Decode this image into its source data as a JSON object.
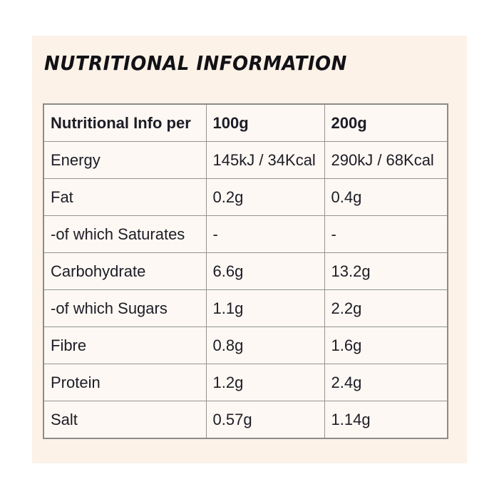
{
  "page": {
    "title": "NUTRITIONAL INFORMATION"
  },
  "colors": {
    "page_background": "#ffffff",
    "card_background": "#fcf2e8",
    "cell_background": "#fdf8f3",
    "border": "#96948f",
    "text": "#1d1c26"
  },
  "table": {
    "columns": [
      "Nutritional Info per",
      "100g",
      "200g"
    ],
    "rows": [
      {
        "label": "Energy",
        "per100": "145kJ / 34Kcal",
        "per200": "290kJ / 68Kcal"
      },
      {
        "label": "Fat",
        "per100": "0.2g",
        "per200": "0.4g"
      },
      {
        "label": "-of which Saturates",
        "per100": "-",
        "per200": "-"
      },
      {
        "label": "Carbohydrate",
        "per100": "6.6g",
        "per200": "13.2g"
      },
      {
        "label": "-of which Sugars",
        "per100": "1.1g",
        "per200": "2.2g"
      },
      {
        "label": "Fibre",
        "per100": "0.8g",
        "per200": "1.6g"
      },
      {
        "label": "Protein",
        "per100": "1.2g",
        "per200": "2.4g"
      },
      {
        "label": "Salt",
        "per100": "0.57g",
        "per200": "1.14g"
      }
    ]
  }
}
